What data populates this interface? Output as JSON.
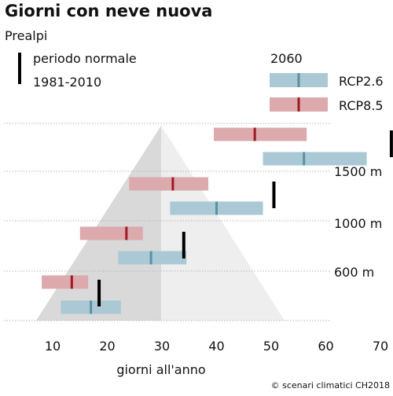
{
  "colors": {
    "rcp26_fill": "#aac9d5",
    "rcp26_mark": "#5b8fa6",
    "rcp85_fill": "#dca9ad",
    "rcp85_mark": "#9d1b22",
    "normal_bar": "#000000",
    "mountain_light": "#eeeeee",
    "mountain_dark": "#d9d9d9",
    "dotted_line": "#b5b5b5"
  },
  "chart_data": {
    "type": "range-bar",
    "title": "Giorni con neve nuova",
    "subtitle": "Prealpi",
    "xlabel": "giorni all'anno",
    "xlim": [
      5,
      75
    ],
    "xticks": [
      10,
      20,
      30,
      40,
      50,
      60,
      70
    ],
    "elevation_labels": [
      "1500 m",
      "1000 m",
      "600 m"
    ],
    "legend": {
      "normal_label_line1": "periodo normale",
      "normal_label_line2": "1981-2010",
      "scenario_year": "2060",
      "rcp26_label": "RCP2.6",
      "rcp85_label": "RCP8.5"
    },
    "groups": [
      {
        "elevation_band": "top",
        "normal": 72,
        "rcp85": {
          "low": 39.5,
          "median": 47,
          "high": 56.5
        },
        "rcp26": {
          "low": 48.5,
          "median": 56,
          "high": 67.5
        }
      },
      {
        "elevation_band": "1500 m",
        "normal": 50.5,
        "rcp85": {
          "low": 24,
          "median": 32,
          "high": 38.5
        },
        "rcp26": {
          "low": 31.5,
          "median": 40,
          "high": 48.5
        }
      },
      {
        "elevation_band": "1000 m",
        "normal": 34,
        "rcp85": {
          "low": 15,
          "median": 23.5,
          "high": 26.5
        },
        "rcp26": {
          "low": 22,
          "median": 28,
          "high": 34.5
        }
      },
      {
        "elevation_band": "600 m",
        "normal": 18.5,
        "rcp85": {
          "low": 8,
          "median": 13.5,
          "high": 16.5
        },
        "rcp26": {
          "low": 11.5,
          "median": 17,
          "high": 22.5
        }
      }
    ]
  },
  "footer": {
    "credit": "© scenari climatici CH2018"
  }
}
